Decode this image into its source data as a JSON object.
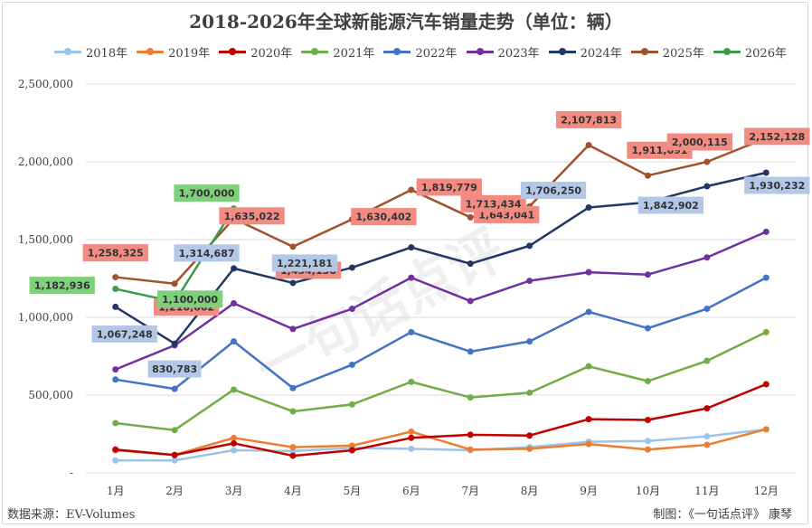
{
  "chart_data": {
    "type": "line",
    "title": "2018-2026年全球新能源汽车销量走势（单位：辆）",
    "xlabel": "",
    "ylabel": "",
    "categories": [
      "1月",
      "2月",
      "3月",
      "4月",
      "5月",
      "6月",
      "7月",
      "8月",
      "9月",
      "10月",
      "11月",
      "12月"
    ],
    "ylim": [
      0,
      2500000
    ],
    "yticks": [
      0,
      500000,
      1000000,
      1500000,
      2000000,
      2500000
    ],
    "ytick_labels": [
      "-",
      "500,000",
      "1,000,000",
      "1,500,000",
      "2,000,000",
      "2,500,000"
    ],
    "grid": true,
    "legend_position": "top",
    "series": [
      {
        "name": "2018年",
        "color": "#9dc3e6",
        "values": [
          80000,
          80000,
          145000,
          140000,
          160000,
          155000,
          145000,
          165000,
          200000,
          205000,
          235000,
          280000
        ]
      },
      {
        "name": "2019年",
        "color": "#ed7d31",
        "values": [
          145000,
          115000,
          225000,
          165000,
          175000,
          265000,
          150000,
          155000,
          185000,
          150000,
          180000,
          280000
        ]
      },
      {
        "name": "2020年",
        "color": "#c00000",
        "values": [
          150000,
          115000,
          190000,
          110000,
          145000,
          225000,
          245000,
          240000,
          345000,
          340000,
          415000,
          570000
        ]
      },
      {
        "name": "2021年",
        "color": "#70ad47",
        "values": [
          320000,
          275000,
          535000,
          395000,
          440000,
          585000,
          485000,
          515000,
          685000,
          590000,
          720000,
          905000
        ]
      },
      {
        "name": "2022年",
        "color": "#4472c4",
        "values": [
          600000,
          540000,
          845000,
          545000,
          695000,
          905000,
          780000,
          845000,
          1035000,
          930000,
          1055000,
          1255000
        ]
      },
      {
        "name": "2023年",
        "color": "#7030a0",
        "values": [
          665000,
          820000,
          1090000,
          925000,
          1055000,
          1255000,
          1105000,
          1235000,
          1290000,
          1275000,
          1385000,
          1550000
        ]
      },
      {
        "name": "2024年",
        "color": "#203864",
        "values": [
          1067248,
          830783,
          1314687,
          1221181,
          1320000,
          1450000,
          1345000,
          1460000,
          1706250,
          1740000,
          1842902,
          1930232
        ]
      },
      {
        "name": "2025年",
        "color": "#a0522d",
        "values": [
          1258325,
          1216662,
          1635022,
          1454136,
          1630402,
          1819779,
          1643041,
          1713434,
          2107813,
          1911691,
          2000115,
          2152128
        ]
      },
      {
        "name": "2026年",
        "color": "#3a9c4a",
        "values": [
          1182936,
          1100000,
          1700000,
          null,
          null,
          null,
          null,
          null,
          null,
          null,
          null,
          null
        ]
      }
    ],
    "data_labels": [
      {
        "series": "2025年",
        "index": 0,
        "text": "1,258,325",
        "color": "#f28b82"
      },
      {
        "series": "2025年",
        "index": 1,
        "text": "1,216,662",
        "color": "#f28b82"
      },
      {
        "series": "2025年",
        "index": 2,
        "text": "1,635,022",
        "color": "#f28b82"
      },
      {
        "series": "2025年",
        "index": 3,
        "text": "1,454,136",
        "color": "#f28b82"
      },
      {
        "series": "2025年",
        "index": 4,
        "text": "1,630,402",
        "color": "#f28b82"
      },
      {
        "series": "2025年",
        "index": 5,
        "text": "1,819,779",
        "color": "#f28b82"
      },
      {
        "series": "2025年",
        "index": 6,
        "text": "1,643,041",
        "color": "#f28b82"
      },
      {
        "series": "2025年",
        "index": 7,
        "text": "1,713,434",
        "color": "#f28b82"
      },
      {
        "series": "2025年",
        "index": 8,
        "text": "2,107,813",
        "color": "#f28b82"
      },
      {
        "series": "2025年",
        "index": 9,
        "text": "1,911,691",
        "color": "#f28b82"
      },
      {
        "series": "2025年",
        "index": 10,
        "text": "2,000,115",
        "color": "#f28b82"
      },
      {
        "series": "2025年",
        "index": 11,
        "text": "2,152,128",
        "color": "#f28b82"
      },
      {
        "series": "2024年",
        "index": 0,
        "text": "1,067,248",
        "color": "#b4c7e7"
      },
      {
        "series": "2024年",
        "index": 1,
        "text": "830,783",
        "color": "#b4c7e7"
      },
      {
        "series": "2024年",
        "index": 2,
        "text": "1,314,687",
        "color": "#b4c7e7"
      },
      {
        "series": "2024年",
        "index": 3,
        "text": "1,221,181",
        "color": "#b4c7e7"
      },
      {
        "series": "2024年",
        "index": 8,
        "text": "1,706,250",
        "color": "#b4c7e7"
      },
      {
        "series": "2024年",
        "index": 10,
        "text": "1,842,902",
        "color": "#b4c7e7"
      },
      {
        "series": "2024年",
        "index": 11,
        "text": "1,930,232",
        "color": "#b4c7e7"
      },
      {
        "series": "2026年",
        "index": 0,
        "text": "1,182,936",
        "color": "#7fd07a"
      },
      {
        "series": "2026年",
        "index": 1,
        "text": "1,100,000",
        "color": "#7fd07a"
      },
      {
        "series": "2026年",
        "index": 2,
        "text": "1,700,000",
        "color": "#7fd07a"
      }
    ]
  },
  "footer": {
    "source": "数据来源：EV-Volumes",
    "credit": "制图：《一句话点评》 康琴"
  },
  "watermark": "一句话点评"
}
